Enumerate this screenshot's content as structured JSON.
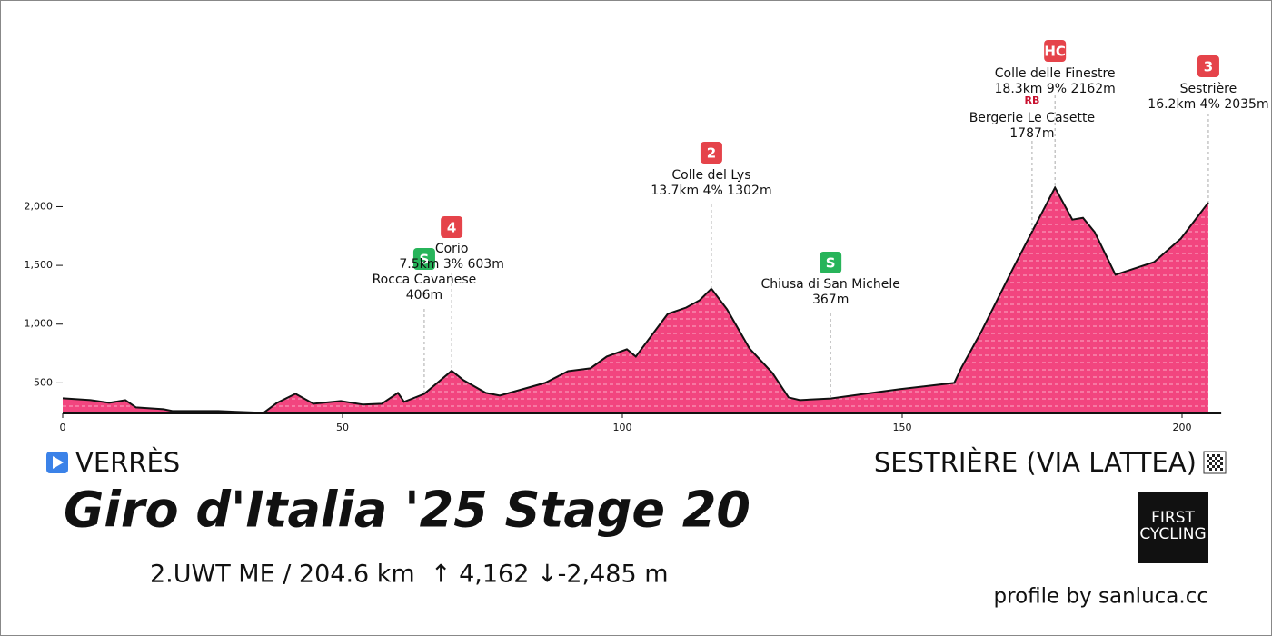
{
  "chart_data": {
    "type": "area",
    "title": "Giro d'Italia '25 Stage 20",
    "subtitle": "2.UWT ME / 204.6 km  ↑ 4,162 ↓-2,485 m",
    "start": "VERRÈS",
    "finish": "SESTRIÈRE (VIA LATTEA)",
    "credit": "profile by sanluca.cc",
    "logo": [
      "FIRST",
      "CYCLING"
    ],
    "color": "#f2457f",
    "x": [
      0,
      5,
      8.3,
      11.2,
      13.1,
      18,
      19.6,
      27.8,
      35.9,
      38.3,
      41.6,
      44.8,
      49.7,
      53.7,
      57,
      59.9,
      61,
      64.6,
      69.5,
      71.6,
      75.6,
      78.1,
      86.2,
      90.3,
      94.3,
      97.2,
      100.8,
      102.4,
      108.1,
      111.4,
      113.8,
      115.9,
      118.7,
      122.7,
      126.8,
      129.7,
      131.7,
      137.2,
      144.6,
      149.5,
      159.3,
      160.6,
      164.1,
      169.8,
      173.2,
      177.3,
      180.4,
      182.3,
      184.4,
      188.1,
      195,
      199.8,
      204.7
    ],
    "values": [
      369,
      353,
      330,
      353,
      291,
      276,
      260,
      260,
      245,
      330,
      407,
      322,
      345,
      315,
      322,
      415,
      338,
      406,
      603,
      523,
      415,
      392,
      500,
      600,
      624,
      724,
      786,
      724,
      1087,
      1141,
      1203,
      1302,
      1126,
      794,
      585,
      376,
      353,
      367,
      415,
      446,
      500,
      631,
      933,
      1474,
      1787,
      2162,
      1890,
      1905,
      1783,
      1420,
      1528,
      1729,
      2035
    ],
    "xlim": [
      0,
      207
    ],
    "ylim": [
      240,
      3450
    ],
    "xticks": [
      0,
      50,
      100,
      150,
      200
    ],
    "yticks": [
      {
        "value": 2000,
        "label": "2,000"
      },
      {
        "value": 1500,
        "label": "1,500"
      },
      {
        "value": 1000,
        "label": "1,000"
      },
      500
    ],
    "annotations": [
      {
        "x": 64.6,
        "badge": "S",
        "badge_color": "#27b45a",
        "label": "Rocca Cavanese",
        "detail": "406m"
      },
      {
        "x": 69.5,
        "badge": "4",
        "badge_color": "#e5434a",
        "label": "Corio",
        "detail": "7.5km 3% 603m"
      },
      {
        "x": 115.9,
        "badge": "2",
        "badge_color": "#e5434a",
        "label": "Colle del Lys",
        "detail": "13.7km 4% 1302m"
      },
      {
        "x": 137.2,
        "badge": "S",
        "badge_color": "#27b45a",
        "label": "Chiusa di San Michele",
        "detail": "367m"
      },
      {
        "x": 173.2,
        "badge": "RB",
        "badge_color": "#c8102e",
        "label": "Bergerie Le Casette",
        "detail": "1787m"
      },
      {
        "x": 177.3,
        "badge": "HC",
        "badge_color": "#e5434a",
        "label": "Colle delle Finestre",
        "detail": "18.3km 9% 2162m"
      },
      {
        "x": 204.7,
        "badge": "3",
        "badge_color": "#e5434a",
        "label": "Sestrière",
        "detail": "16.2km 4% 2035m"
      }
    ]
  }
}
